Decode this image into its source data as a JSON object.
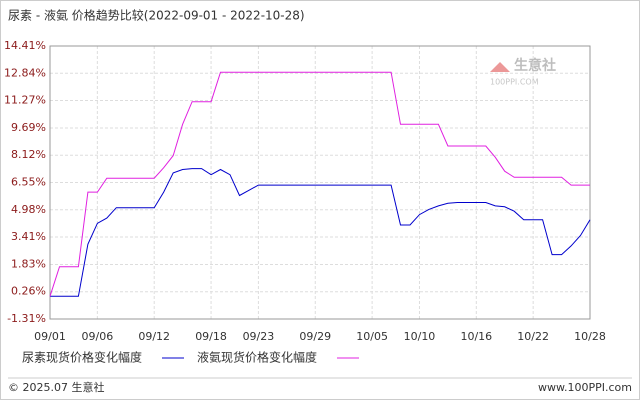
{
  "chart_data": {
    "type": "line",
    "title": "尿素 - 液氨 价格趋势比较(2022-09-01 - 2022-10-28)",
    "watermark": {
      "name": "生意社",
      "url": "100PPI.COM"
    },
    "footer": {
      "left": "© 2025.07 生意社",
      "right": "www.100PPI.com"
    },
    "x": [
      "09/01",
      "09/02",
      "09/03",
      "09/04",
      "09/05",
      "09/06",
      "09/07",
      "09/08",
      "09/09",
      "09/10",
      "09/11",
      "09/12",
      "09/13",
      "09/14",
      "09/15",
      "09/16",
      "09/17",
      "09/18",
      "09/19",
      "09/20",
      "09/21",
      "09/22",
      "09/23",
      "09/24",
      "09/25",
      "09/26",
      "09/27",
      "09/28",
      "09/29",
      "09/30",
      "10/01",
      "10/02",
      "10/03",
      "10/04",
      "10/05",
      "10/06",
      "10/07",
      "10/08",
      "10/09",
      "10/10",
      "10/11",
      "10/12",
      "10/13",
      "10/14",
      "10/15",
      "10/16",
      "10/17",
      "10/18",
      "10/19",
      "10/20",
      "10/21",
      "10/22",
      "10/23",
      "10/24",
      "10/25",
      "10/26",
      "10/27",
      "10/28"
    ],
    "xticks": [
      "09/01",
      "09/06",
      "09/12",
      "09/18",
      "09/23",
      "09/29",
      "10/05",
      "10/10",
      "10/16",
      "10/22",
      "10/28"
    ],
    "ylim": [
      -1.31,
      14.41
    ],
    "yticks": [
      {
        "value": -1.31,
        "label": "-1.31%"
      },
      {
        "value": 0.26,
        "label": "0.26%"
      },
      {
        "value": 1.83,
        "label": "1.83%"
      },
      {
        "value": 3.41,
        "label": "3.41%"
      },
      {
        "value": 4.98,
        "label": "4.98%"
      },
      {
        "value": 6.55,
        "label": "6.55%"
      },
      {
        "value": 8.12,
        "label": "8.12%"
      },
      {
        "value": 9.69,
        "label": "9.69%"
      },
      {
        "value": 11.27,
        "label": "11.27%"
      },
      {
        "value": 12.84,
        "label": "12.84%"
      },
      {
        "value": 14.41,
        "label": "14.41%"
      }
    ],
    "grid": true,
    "series": [
      {
        "name": "尿素现货价格变化幅度",
        "color": "#0000cc",
        "values": [
          0,
          0,
          0,
          0,
          3.0,
          4.2,
          4.5,
          5.1,
          5.1,
          5.1,
          5.1,
          5.1,
          6.0,
          7.1,
          7.3,
          7.35,
          7.35,
          7.0,
          7.3,
          7.0,
          5.8,
          6.1,
          6.4,
          6.4,
          6.4,
          6.4,
          6.4,
          6.4,
          6.4,
          6.4,
          6.4,
          6.4,
          6.4,
          6.4,
          6.4,
          6.4,
          6.4,
          4.1,
          4.1,
          4.7,
          5.0,
          5.2,
          5.35,
          5.4,
          5.4,
          5.4,
          5.4,
          5.2,
          5.15,
          4.9,
          4.4,
          4.4,
          4.4,
          2.4,
          2.4,
          2.9,
          3.5,
          4.4
        ]
      },
      {
        "name": "液氨现货价格变化幅度",
        "color": "#e020e0",
        "values": [
          0,
          1.7,
          1.7,
          1.7,
          6.0,
          6.0,
          6.8,
          6.8,
          6.8,
          6.8,
          6.8,
          6.8,
          7.4,
          8.1,
          9.9,
          11.2,
          11.2,
          11.2,
          12.9,
          12.9,
          12.9,
          12.9,
          12.9,
          12.9,
          12.9,
          12.9,
          12.9,
          12.9,
          12.9,
          12.9,
          12.9,
          12.9,
          12.9,
          12.9,
          12.9,
          12.9,
          12.9,
          9.9,
          9.9,
          9.9,
          9.9,
          9.9,
          8.65,
          8.65,
          8.65,
          8.65,
          8.65,
          8.0,
          7.2,
          6.85,
          6.85,
          6.85,
          6.85,
          6.85,
          6.85,
          6.4,
          6.4,
          6.4
        ]
      }
    ]
  }
}
